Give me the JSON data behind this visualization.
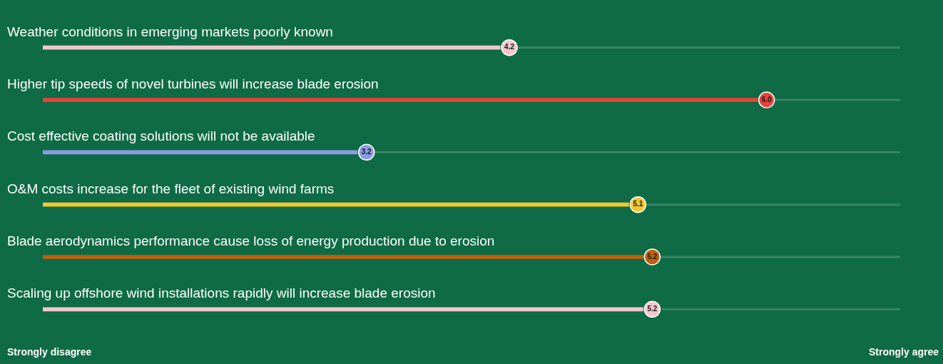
{
  "chart_data": {
    "type": "bar",
    "orientation": "horizontal",
    "categories": [
      "Weather conditions in emerging markets poorly known",
      "Higher tip speeds of novel turbines will increase blade erosion",
      "Cost effective coating solutions will not be available",
      "O&M costs increase for the fleet of existing wind farms",
      "Blade aerodynamics performance cause loss of energy production due to erosion",
      "Scaling up offshore wind installations rapidly will increase blade erosion"
    ],
    "values": [
      4.2,
      6.0,
      3.2,
      5.1,
      5.2,
      5.2
    ],
    "value_labels": [
      "4.2",
      "6.0",
      "3.2",
      "5.1",
      "5.2",
      "5.2"
    ],
    "colors": [
      "#f4c6d0",
      "#e8443a",
      "#8c9be6",
      "#f0c832",
      "#c0600a",
      "#f4c6d0"
    ],
    "xlim": [
      1,
      7
    ],
    "annotations": [
      "Strongly disagree",
      "Strongly agree"
    ],
    "legend": false
  }
}
